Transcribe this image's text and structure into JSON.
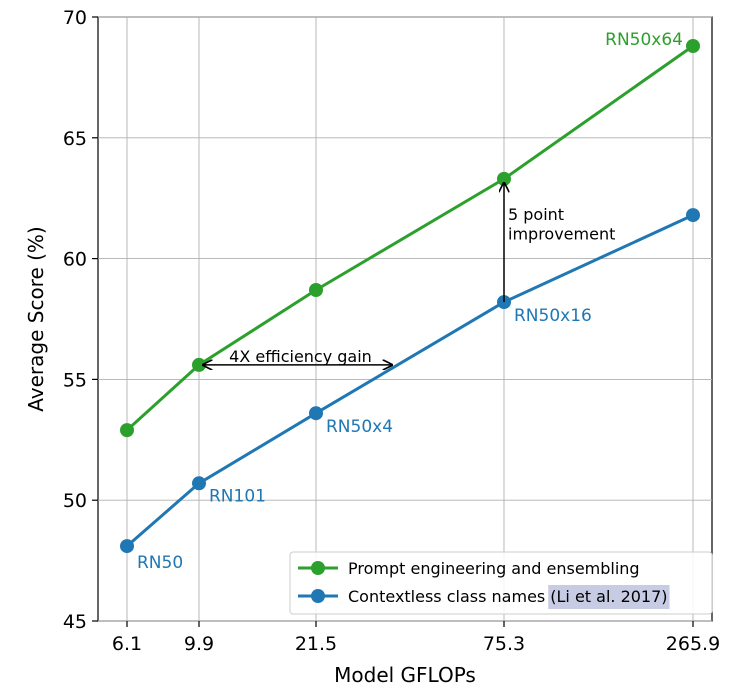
{
  "chart_data": {
    "type": "line",
    "xlabel": "Model GFLOPs",
    "ylabel": "Average Score (%)",
    "ylim": [
      45,
      70
    ],
    "yticks": [
      45,
      50,
      55,
      60,
      65,
      70
    ],
    "x_tick_labels": [
      "6.1",
      "9.9",
      "21.5",
      "75.3",
      "265.9"
    ],
    "grid": true,
    "legend_position": "bottom-right",
    "series": [
      {
        "name": "Prompt engineering and ensembling",
        "color": "#2ca02c",
        "values": [
          52.9,
          55.6,
          58.7,
          63.3,
          68.8
        ]
      },
      {
        "name": "Contextless class names",
        "citation": "(Li et al. 2017)",
        "color": "#1f77b4",
        "values": [
          48.1,
          50.7,
          53.6,
          58.2,
          61.8
        ]
      }
    ],
    "point_labels": [
      {
        "text": "RN50",
        "series": 1,
        "index": 0,
        "color": "#1f77b4"
      },
      {
        "text": "RN101",
        "series": 1,
        "index": 1,
        "color": "#1f77b4"
      },
      {
        "text": "RN50x4",
        "series": 1,
        "index": 2,
        "color": "#1f77b4"
      },
      {
        "text": "RN50x16",
        "series": 1,
        "index": 3,
        "color": "#1f77b4"
      },
      {
        "text": "RN50x64",
        "series": 0,
        "index": 4,
        "color": "#2ca02c"
      }
    ],
    "annotations": {
      "efficiency": {
        "text": "4X efficiency gain",
        "y": 55.6
      },
      "improvement": {
        "line1": "5 point",
        "line2": "improvement",
        "from": 58.2,
        "to": 63.3
      }
    }
  }
}
